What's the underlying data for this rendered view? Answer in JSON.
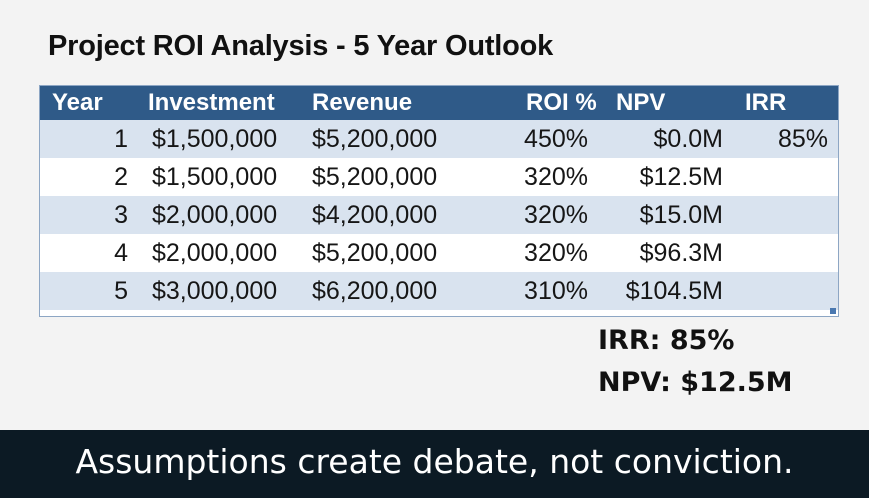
{
  "slide": {
    "title": "Project ROI Analysis - 5 Year Outlook"
  },
  "table": {
    "headers": {
      "year": "Year",
      "investment": "Investment",
      "revenue": "Revenue",
      "roi": "ROI %",
      "npv": "NPV",
      "irr": "IRR"
    },
    "rows": [
      {
        "year": "1",
        "investment": "$1,500,000",
        "revenue": "$5,200,000",
        "roi": "450%",
        "npv": "$0.0M",
        "irr": "85%"
      },
      {
        "year": "2",
        "investment": "$1,500,000",
        "revenue": "$5,200,000",
        "roi": "320%",
        "npv": "$12.5M",
        "irr": ""
      },
      {
        "year": "3",
        "investment": "$2,000,000",
        "revenue": "$4,200,000",
        "roi": "320%",
        "npv": "$15.0M",
        "irr": ""
      },
      {
        "year": "4",
        "investment": "$2,000,000",
        "revenue": "$5,200,000",
        "roi": "320%",
        "npv": "$96.3M",
        "irr": ""
      },
      {
        "year": "5",
        "investment": "$3,000,000",
        "revenue": "$6,200,000",
        "roi": "310%",
        "npv": "$104.5M",
        "irr": ""
      }
    ]
  },
  "summary": {
    "irr": "IRR: 85%",
    "npv": "NPV: $12.5M"
  },
  "caption": {
    "text": "Assumptions create debate, not conviction."
  },
  "colors": {
    "header_bg": "#2f5a88",
    "band_row": "#d9e3ef",
    "caption_bg": "#0c1a24"
  }
}
